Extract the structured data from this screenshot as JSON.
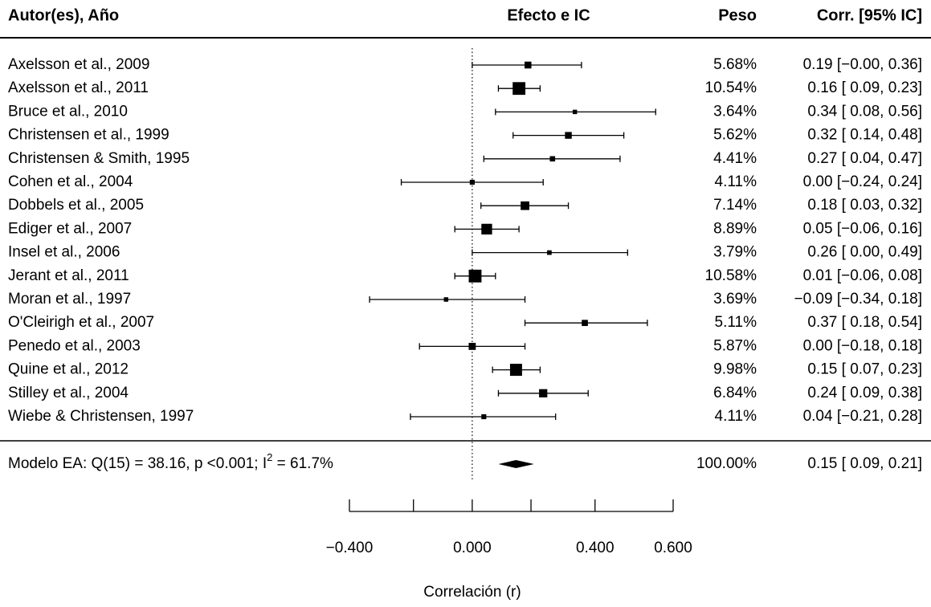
{
  "chart_data": {
    "type": "forest",
    "headers": [
      "Autor(es), Año",
      "Efecto e IC",
      "Peso",
      "Corr. [95% IC]"
    ],
    "categories": [
      "Axelsson et al., 2009",
      "Axelsson et al., 2011",
      "Bruce et al., 2010",
      "Christensen et al., 1999",
      "Christensen & Smith, 1995",
      "Cohen et al., 2004",
      "Dobbels et al., 2005",
      "Ediger et al., 2007",
      "Insel et al., 2006",
      "Jerant et al., 2011",
      "Moran et al., 1997",
      "O'Cleirigh et al., 2007",
      "Penedo et al., 2003",
      "Quine et al., 2012",
      "Stilley et al., 2004",
      "Wiebe & Christensen, 1997"
    ],
    "values": [
      0.19,
      0.16,
      0.34,
      0.32,
      0.27,
      0.0,
      0.18,
      0.05,
      0.26,
      0.01,
      -0.09,
      0.37,
      0.0,
      0.15,
      0.24,
      0.04
    ],
    "lower": [
      0.0,
      0.09,
      0.08,
      0.14,
      0.04,
      -0.24,
      0.03,
      -0.06,
      0.0,
      -0.06,
      -0.34,
      0.18,
      -0.18,
      0.07,
      0.09,
      -0.21
    ],
    "upper": [
      0.36,
      0.23,
      0.56,
      0.48,
      0.47,
      0.24,
      0.32,
      0.16,
      0.49,
      0.08,
      0.18,
      0.54,
      0.18,
      0.23,
      0.38,
      0.28
    ],
    "weights": [
      5.68,
      10.54,
      3.64,
      5.62,
      4.41,
      4.11,
      7.14,
      8.89,
      3.79,
      10.58,
      3.69,
      5.11,
      5.87,
      9.98,
      6.84,
      4.11
    ],
    "weight_labels": [
      "5.68%",
      "10.54%",
      "3.64%",
      "5.62%",
      "4.41%",
      "4.11%",
      "7.14%",
      "8.89%",
      "3.79%",
      "10.58%",
      "3.69%",
      "5.11%",
      "5.87%",
      "9.98%",
      "6.84%",
      "4.11%"
    ],
    "value_labels": [
      "0.19 [−0.00, 0.36]",
      "0.16 [ 0.09, 0.23]",
      "0.34 [ 0.08, 0.56]",
      "0.32 [ 0.14, 0.48]",
      "0.27 [ 0.04, 0.47]",
      "0.00 [−0.24, 0.24]",
      "0.18 [ 0.03, 0.32]",
      "0.05 [−0.06, 0.16]",
      "0.26 [ 0.00, 0.49]",
      "0.01 [−0.06, 0.08]",
      "−0.09 [−0.34, 0.18]",
      "0.37 [ 0.18, 0.54]",
      "0.00 [−0.18, 0.18]",
      "0.15 [ 0.07, 0.23]",
      "0.24 [ 0.09, 0.38]",
      "0.04 [−0.21, 0.28]"
    ],
    "summary": {
      "label_parts": [
        "Modelo EA: Q(15) = 38.16, p <0.001; I",
        "2",
        " = 61.7%"
      ],
      "value": 0.15,
      "lower": 0.09,
      "upper": 0.21,
      "weight": 100,
      "weight_label": "100.00%",
      "value_label": "0.15 [ 0.09, 0.21]"
    },
    "xscale": "fisher-z",
    "xlim": [
      -0.4,
      0.6
    ],
    "xticks": [
      {
        "value": -0.4,
        "label": "−0.400"
      },
      {
        "value": -0.2,
        "label": null
      },
      {
        "value": 0,
        "label": "0.000"
      },
      {
        "value": 0.2,
        "label": null
      },
      {
        "value": 0.4,
        "label": "0.400"
      },
      {
        "value": 0.6,
        "label": "0.600"
      }
    ],
    "xlabel": "Correlación (r)",
    "color": "#000000"
  }
}
